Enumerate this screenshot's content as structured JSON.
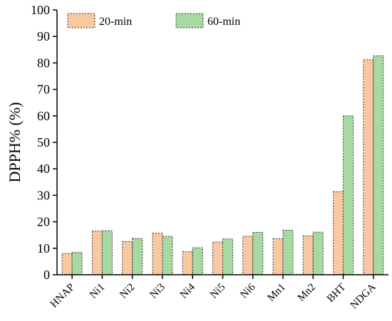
{
  "chart_data": {
    "type": "bar",
    "categories": [
      "HNAP",
      "Ni1",
      "Ni2",
      "Ni3",
      "Ni4",
      "Ni5",
      "Ni6",
      "Mn1",
      "Mn2",
      "BHT",
      "NDGA"
    ],
    "series": [
      {
        "name": "20-min",
        "color": "#f8c9a0",
        "values": [
          8,
          16.5,
          12.5,
          15.7,
          8.7,
          12.3,
          14.5,
          13.6,
          14.7,
          31.4,
          81.2
        ]
      },
      {
        "name": "60-min",
        "color": "#a7d9a3",
        "values": [
          8.4,
          16.6,
          13.7,
          14.5,
          10.2,
          13.5,
          16.0,
          16.8,
          16.1,
          60.0,
          82.7
        ]
      }
    ],
    "title": "",
    "xlabel": "",
    "ylabel": "DPPH% (%)",
    "ylim": [
      0,
      100
    ],
    "yticks": [
      0,
      10,
      20,
      30,
      40,
      50,
      60,
      70,
      80,
      90,
      100
    ],
    "grid": false,
    "legend_position": "top-left",
    "bar_border": "dashed"
  }
}
